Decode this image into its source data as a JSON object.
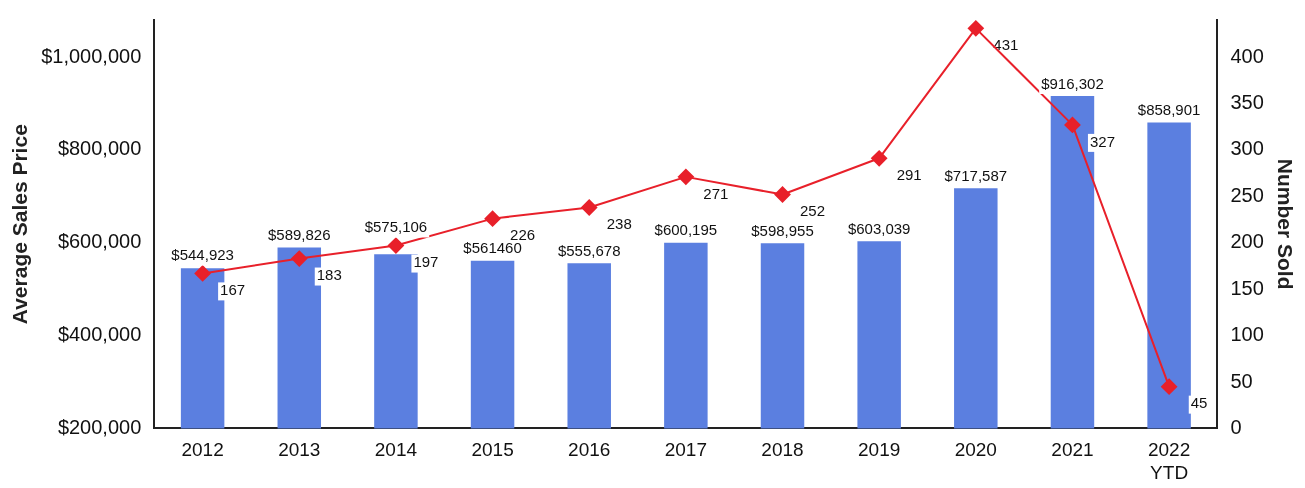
{
  "chart_data": {
    "type": "bar",
    "ylabel": "Average Sales Price",
    "y2label": "Number Sold",
    "categories": [
      "2012",
      "2013",
      "2014",
      "2015",
      "2016",
      "2017",
      "2018",
      "2019",
      "2020",
      "2021",
      "2022 YTD"
    ],
    "series": [
      {
        "color": "#5b7fe0",
        "values": [
          544923,
          589826,
          575106,
          561460,
          555678,
          600195,
          598955,
          603039,
          717587,
          916302,
          858901
        ],
        "value_labels": [
          "$544,923",
          "$589,826",
          "$575,106",
          "$561460",
          "$555,678",
          "$600,195",
          "$598,955",
          "$603,039",
          "$717,587",
          "$916,302",
          "$858,901"
        ]
      },
      {
        "type": "line",
        "axis": "y2",
        "color": "#e8202a",
        "marker": "diamond",
        "values": [
          167,
          183,
          197,
          226,
          238,
          271,
          252,
          291,
          431,
          327,
          45
        ],
        "value_labels": [
          "167",
          "183",
          "197",
          "226",
          "238",
          "271",
          "252",
          "291",
          "431",
          "327",
          "45"
        ]
      }
    ],
    "ylim": [
      200000,
      1080000
    ],
    "yticks": [
      {
        "value": 200000,
        "label": "$200,000"
      },
      {
        "value": 400000,
        "label": "$400,000"
      },
      {
        "value": 600000,
        "label": "$600,000"
      },
      {
        "value": 800000,
        "label": "$800,000"
      },
      {
        "value": 1000000,
        "label": "$1,000,000"
      }
    ],
    "y2lim": [
      0,
      440
    ],
    "y2ticks": [
      0,
      50,
      100,
      150,
      200,
      250,
      300,
      350,
      400
    ],
    "grid": false,
    "legend": false
  }
}
